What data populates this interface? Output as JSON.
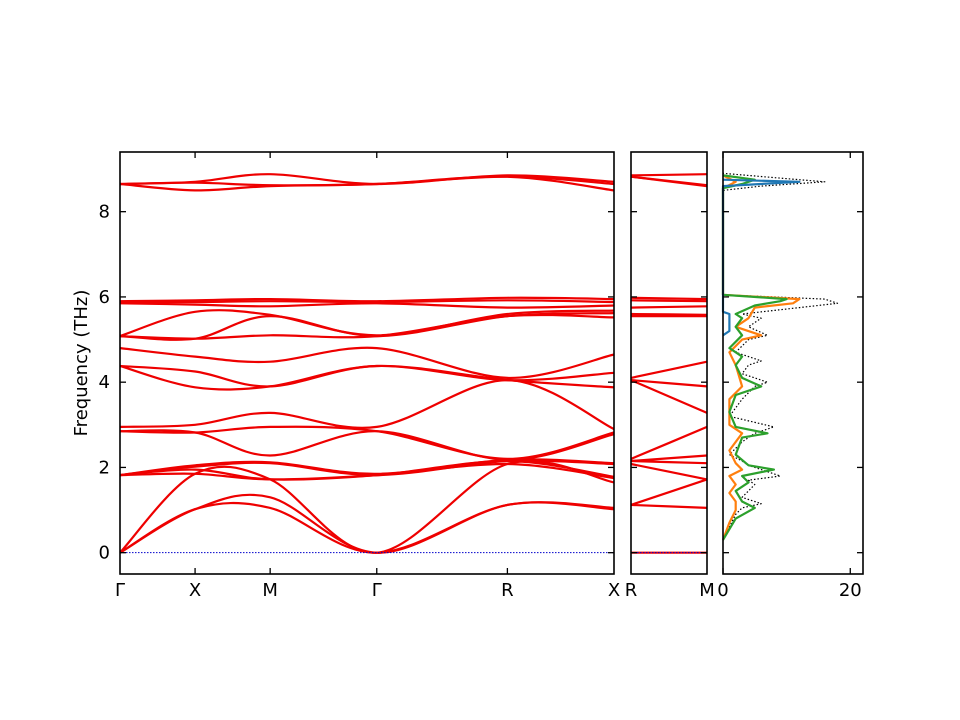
{
  "chart_data": [
    {
      "type": "line",
      "panel": "band-main",
      "ylabel": "Frequency (THz)",
      "ylim": [
        -0.5,
        9.4
      ],
      "yticks": [
        0,
        2,
        4,
        6,
        8
      ],
      "xticks": [
        "Γ",
        "X",
        "M",
        "Γ",
        "R",
        "X"
      ],
      "x_positions": [
        0,
        0.5,
        1.0,
        1.71,
        2.58,
        3.29
      ],
      "xlim": [
        0,
        3.29
      ],
      "series_color": "#ee0000",
      "zero_line_color": "#0000cc",
      "series": [
        {
          "x": [
            0,
            0.5,
            1.0,
            1.71,
            2.58,
            3.29
          ],
          "y": [
            0,
            1.02,
            1.05,
            0,
            1.12,
            1.02
          ]
        },
        {
          "x": [
            0,
            0.5,
            1.0,
            1.71,
            2.58,
            3.29
          ],
          "y": [
            0,
            1.02,
            1.3,
            0,
            1.12,
            1.05
          ]
        },
        {
          "x": [
            0,
            0.5,
            1.0,
            1.71,
            2.58,
            3.29
          ],
          "y": [
            0,
            1.85,
            1.72,
            0,
            2.08,
            1.65
          ]
        },
        {
          "x": [
            0,
            0.5,
            1.0,
            1.71,
            2.58,
            3.29
          ],
          "y": [
            1.82,
            1.85,
            1.72,
            1.82,
            2.08,
            1.75
          ]
        },
        {
          "x": [
            0,
            0.5,
            1.0,
            1.71,
            2.58,
            3.29
          ],
          "y": [
            1.82,
            1.95,
            1.72,
            1.82,
            2.15,
            1.78
          ]
        },
        {
          "x": [
            0,
            0.5,
            1.0,
            1.71,
            2.58,
            3.29
          ],
          "y": [
            1.82,
            2.02,
            2.1,
            1.82,
            2.15,
            2.08
          ]
        },
        {
          "x": [
            0,
            0.5,
            1.0,
            1.71,
            2.58,
            3.29
          ],
          "y": [
            1.82,
            2.05,
            2.12,
            1.85,
            2.18,
            2.1
          ]
        },
        {
          "x": [
            0,
            0.5,
            1.0,
            1.71,
            2.58,
            3.29
          ],
          "y": [
            2.85,
            2.82,
            2.28,
            2.85,
            2.18,
            2.78
          ]
        },
        {
          "x": [
            0,
            0.5,
            1.0,
            1.71,
            2.58,
            3.29
          ],
          "y": [
            2.85,
            2.82,
            2.95,
            2.85,
            2.2,
            2.82
          ]
        },
        {
          "x": [
            0,
            0.5,
            1.0,
            1.71,
            2.58,
            3.29
          ],
          "y": [
            2.95,
            3.0,
            3.28,
            2.95,
            4.05,
            2.9
          ]
        },
        {
          "x": [
            0,
            0.5,
            1.0,
            1.71,
            2.58,
            3.29
          ],
          "y": [
            4.38,
            3.88,
            3.9,
            4.38,
            4.05,
            3.88
          ]
        },
        {
          "x": [
            0,
            0.5,
            1.0,
            1.71,
            2.58,
            3.29
          ],
          "y": [
            4.38,
            4.25,
            3.9,
            4.38,
            4.05,
            4.22
          ]
        },
        {
          "x": [
            0,
            0.5,
            1.0,
            1.71,
            2.58,
            3.29
          ],
          "y": [
            4.8,
            4.6,
            4.48,
            4.8,
            4.1,
            4.65
          ]
        },
        {
          "x": [
            0,
            0.5,
            1.0,
            1.71,
            2.58,
            3.29
          ],
          "y": [
            5.08,
            5.02,
            5.1,
            5.08,
            5.55,
            5.52
          ]
        },
        {
          "x": [
            0,
            0.5,
            1.0,
            1.71,
            2.58,
            3.29
          ],
          "y": [
            5.08,
            5.02,
            5.55,
            5.08,
            5.55,
            5.62
          ]
        },
        {
          "x": [
            0,
            0.5,
            1.0,
            1.71,
            2.58,
            3.29
          ],
          "y": [
            5.08,
            5.65,
            5.58,
            5.1,
            5.6,
            5.68
          ]
        },
        {
          "x": [
            0,
            0.5,
            1.0,
            1.71,
            2.58,
            3.29
          ],
          "y": [
            5.85,
            5.82,
            5.78,
            5.85,
            5.75,
            5.8
          ]
        },
        {
          "x": [
            0,
            0.5,
            1.0,
            1.71,
            2.58,
            3.29
          ],
          "y": [
            5.88,
            5.88,
            5.9,
            5.88,
            5.92,
            5.88
          ]
        },
        {
          "x": [
            0,
            0.5,
            1.0,
            1.71,
            2.58,
            3.29
          ],
          "y": [
            5.9,
            5.92,
            5.95,
            5.9,
            5.98,
            5.95
          ]
        },
        {
          "x": [
            0,
            0.5,
            1.0,
            1.71,
            2.58,
            3.29
          ],
          "y": [
            8.65,
            8.5,
            8.6,
            8.65,
            8.82,
            8.5
          ]
        },
        {
          "x": [
            0,
            0.5,
            1.0,
            1.71,
            2.58,
            3.29
          ],
          "y": [
            8.65,
            8.68,
            8.62,
            8.65,
            8.82,
            8.65
          ]
        },
        {
          "x": [
            0,
            0.5,
            1.0,
            1.71,
            2.58,
            3.29
          ],
          "y": [
            8.65,
            8.7,
            8.88,
            8.65,
            8.85,
            8.7
          ]
        }
      ]
    },
    {
      "type": "line",
      "panel": "band-side",
      "ylim": [
        -0.5,
        9.4
      ],
      "xticks": [
        "R",
        "M"
      ],
      "x_positions": [
        0,
        0.71
      ],
      "xlim": [
        0,
        0.71
      ],
      "series": [
        {
          "x": [
            0,
            0.71
          ],
          "y": [
            0,
            0
          ]
        },
        {
          "x": [
            0,
            0.71
          ],
          "y": [
            1.12,
            1.05
          ]
        },
        {
          "x": [
            0,
            0.71
          ],
          "y": [
            1.12,
            1.72
          ]
        },
        {
          "x": [
            0,
            0.71
          ],
          "y": [
            2.08,
            1.72
          ]
        },
        {
          "x": [
            0,
            0.71
          ],
          "y": [
            2.15,
            2.1
          ]
        },
        {
          "x": [
            0,
            0.71
          ],
          "y": [
            2.15,
            2.28
          ]
        },
        {
          "x": [
            0,
            0.71
          ],
          "y": [
            2.2,
            2.95
          ]
        },
        {
          "x": [
            0,
            0.71
          ],
          "y": [
            4.05,
            3.28
          ]
        },
        {
          "x": [
            0,
            0.71
          ],
          "y": [
            4.05,
            3.9
          ]
        },
        {
          "x": [
            0,
            0.71
          ],
          "y": [
            4.1,
            4.48
          ]
        },
        {
          "x": [
            0,
            0.71
          ],
          "y": [
            5.55,
            5.55
          ]
        },
        {
          "x": [
            0,
            0.71
          ],
          "y": [
            5.6,
            5.58
          ]
        },
        {
          "x": [
            0,
            0.71
          ],
          "y": [
            5.75,
            5.78
          ]
        },
        {
          "x": [
            0,
            0.71
          ],
          "y": [
            5.92,
            5.9
          ]
        },
        {
          "x": [
            0,
            0.71
          ],
          "y": [
            5.98,
            5.95
          ]
        },
        {
          "x": [
            0,
            0.71
          ],
          "y": [
            8.82,
            8.6
          ]
        },
        {
          "x": [
            0,
            0.71
          ],
          "y": [
            8.82,
            8.62
          ]
        },
        {
          "x": [
            0,
            0.71
          ],
          "y": [
            8.85,
            8.88
          ]
        }
      ]
    },
    {
      "type": "line",
      "panel": "dos",
      "ylim": [
        -0.5,
        9.4
      ],
      "xlim": [
        0,
        22
      ],
      "xticks": [
        0,
        20
      ],
      "series": [
        {
          "color": "#000000",
          "style": "dotted",
          "y": [
            0.3,
            0.6,
            0.9,
            1.05,
            1.15,
            1.3,
            1.45,
            1.6,
            1.7,
            1.8,
            1.95,
            2.05,
            2.15,
            2.3,
            2.6,
            2.8,
            2.95,
            3.2,
            3.6,
            3.9,
            4.0,
            4.2,
            4.4,
            4.5,
            4.7,
            5.0,
            5.1,
            5.3,
            5.5,
            5.6,
            5.75,
            5.85,
            5.95,
            6.05,
            8.5,
            8.6,
            8.7,
            8.8,
            8.9
          ],
          "x": [
            0,
            1,
            2,
            3,
            6,
            3,
            4,
            5,
            4,
            9,
            6,
            4,
            3,
            1,
            3,
            5,
            8,
            1,
            3,
            5,
            7,
            3,
            4,
            6,
            2,
            4,
            7,
            4,
            6,
            3,
            12,
            18,
            16,
            0,
            0,
            6,
            16,
            8,
            0
          ]
        },
        {
          "color": "#ff7f0e",
          "style": "solid",
          "y": [
            0.3,
            0.7,
            1.0,
            1.2,
            1.4,
            1.6,
            1.8,
            1.95,
            2.1,
            2.4,
            2.8,
            3.0,
            3.6,
            3.9,
            4.4,
            4.7,
            5.0,
            5.1,
            5.3,
            5.5,
            5.75,
            5.85,
            5.95,
            6.05,
            8.55,
            8.7,
            8.85
          ],
          "x": [
            0,
            1,
            2,
            2,
            1,
            2,
            1,
            3,
            2,
            1,
            3,
            1,
            1,
            3,
            2,
            1,
            3,
            6,
            2,
            4,
            5,
            11,
            12,
            0,
            0,
            2,
            0
          ]
        },
        {
          "color": "#2ca02c",
          "style": "solid",
          "y": [
            0.3,
            0.8,
            1.05,
            1.2,
            1.45,
            1.65,
            1.8,
            1.95,
            2.05,
            2.3,
            2.7,
            2.8,
            2.95,
            3.3,
            3.7,
            3.9,
            4.1,
            4.4,
            4.6,
            4.8,
            5.1,
            5.3,
            5.5,
            5.6,
            5.8,
            5.9,
            5.95,
            6.05,
            8.55,
            8.65,
            8.75,
            8.85
          ],
          "x": [
            0,
            2,
            5,
            3,
            2,
            4,
            3,
            8,
            4,
            2,
            3,
            7,
            2,
            1,
            2,
            6,
            3,
            2,
            3,
            1,
            3,
            2,
            3,
            2,
            5,
            9,
            10,
            0,
            0,
            3,
            5,
            0
          ]
        },
        {
          "color": "#1f77b4",
          "style": "solid",
          "y": [
            5.1,
            5.2,
            5.3,
            5.5,
            5.6,
            5.65,
            8.6,
            8.7,
            8.75
          ],
          "x": [
            0,
            1,
            1,
            1,
            1,
            0,
            0,
            12,
            0
          ]
        }
      ]
    }
  ]
}
